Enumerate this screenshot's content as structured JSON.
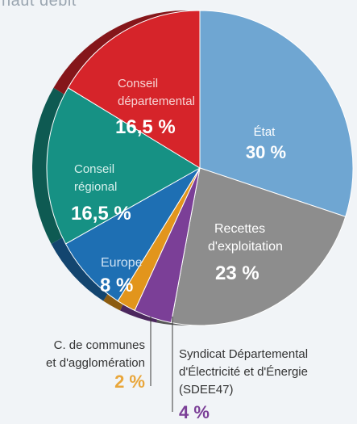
{
  "title_fragment": "haut débit",
  "chart_data": {
    "type": "pie",
    "title": "",
    "slices": [
      {
        "label": "État",
        "value": 30,
        "display": "30 %",
        "color": "#6fa6d2"
      },
      {
        "label": "Recettes d'exploitation",
        "value": 23,
        "display": "23 %",
        "color": "#8d8d8d"
      },
      {
        "label": "Syndicat Départemental d'Électricité et d'Énergie (SDEE47)",
        "value": 4,
        "display": "4 %",
        "color": "#7b3f97"
      },
      {
        "label": "C. de communes et d'agglomération",
        "value": 2,
        "display": "2 %",
        "color": "#e2951c"
      },
      {
        "label": "Europe",
        "value": 8,
        "display": "8 %",
        "color": "#1e6fb3"
      },
      {
        "label": "Conseil régional",
        "value": 16.5,
        "display": "16,5 %",
        "color": "#169184"
      },
      {
        "label": "Conseil départemental",
        "value": 16.5,
        "display": "16,5 %",
        "color": "#d6242a"
      }
    ]
  },
  "labels": {
    "etat": [
      "État"
    ],
    "recettes": [
      "Recettes",
      "d'exploitation"
    ],
    "europe": [
      "Europe"
    ],
    "regional": [
      "Conseil",
      "régional"
    ],
    "departemental": [
      "Conseil",
      "départemental"
    ],
    "communes": [
      "C. de communes",
      "et d'agglomération"
    ],
    "sdee": [
      "Syndicat Départemental",
      "d'Électricité et d'Énergie",
      "(SDEE47)"
    ]
  }
}
